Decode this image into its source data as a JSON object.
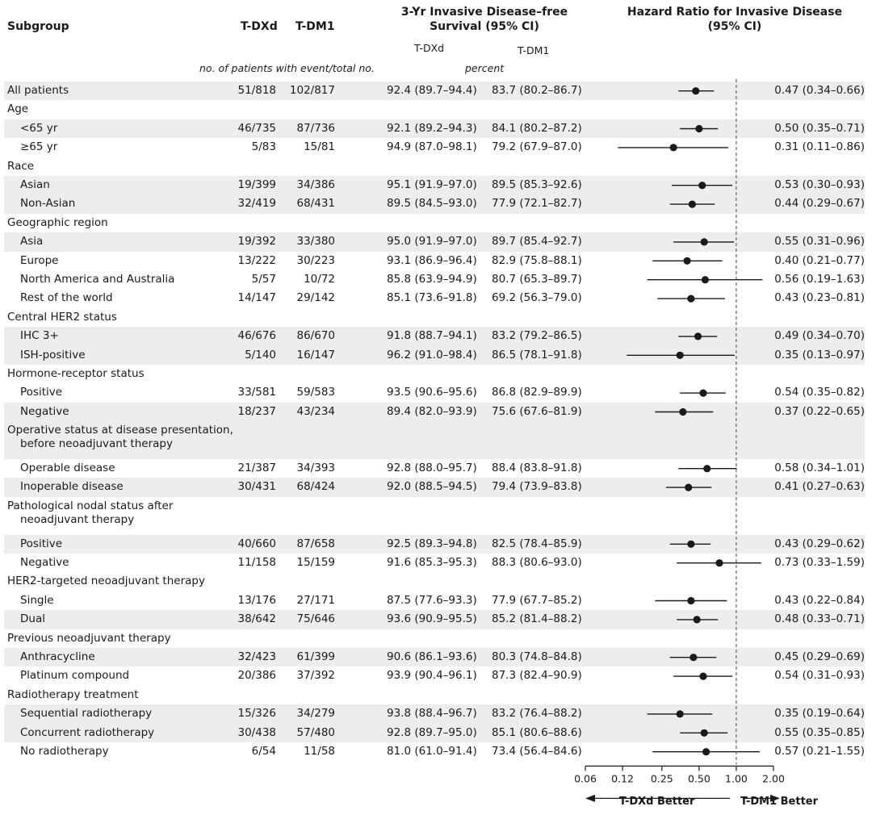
{
  "headers": {
    "subgroup": "Subgroup",
    "tdxd": "T-DXd",
    "tdm1": "T-DM1",
    "survival_line1": "3-Yr Invasive Disease–free",
    "survival_line2": "Survival (95% CI)",
    "survival_tdxd": "T-DXd",
    "survival_tdm1": "T-DM1",
    "hr_line1": "Hazard Ratio for Invasive Disease",
    "hr_line2": "(95% CI)",
    "events_unit": "no. of patients with event/total no.",
    "percent_unit": "percent"
  },
  "footer": {
    "left_better": "T-DXd Better",
    "right_better": "T-DM1 Better"
  },
  "chart_data": {
    "type": "forest",
    "title": "Hazard Ratio for Invasive Disease (95% CI)",
    "xscale": "log",
    "xlim": [
      0.06,
      2.0
    ],
    "xticks": [
      "0.06",
      "0.12",
      "0.25",
      "0.50",
      "1.00",
      "2.00"
    ],
    "reference_line": 1.0,
    "rows": [
      {
        "label": "All patients",
        "indent": false,
        "tdxd": "51/818",
        "tdm1": "102/817",
        "surv_tdxd": "92.4 (89.7–94.4)",
        "surv_tdm1": "83.7 (80.2–86.7)",
        "hr_text": "0.47 (0.34–0.66)",
        "hr": 0.47,
        "lo": 0.34,
        "hi": 0.66,
        "shade": true
      },
      {
        "label": "Age",
        "header": true
      },
      {
        "label": "<65 yr",
        "indent": true,
        "tdxd": "46/735",
        "tdm1": "87/736",
        "surv_tdxd": "92.1 (89.2–94.3)",
        "surv_tdm1": "84.1 (80.2–87.2)",
        "hr_text": "0.50 (0.35–0.71)",
        "hr": 0.5,
        "lo": 0.35,
        "hi": 0.71,
        "shade": true
      },
      {
        "label": "≥65 yr",
        "indent": true,
        "tdxd": "5/83",
        "tdm1": "15/81",
        "surv_tdxd": "94.9 (87.0–98.1)",
        "surv_tdm1": "79.2 (67.9–87.0)",
        "hr_text": "0.31 (0.11–0.86)",
        "hr": 0.31,
        "lo": 0.11,
        "hi": 0.86,
        "shade": false
      },
      {
        "label": "Race",
        "header": true
      },
      {
        "label": "Asian",
        "indent": true,
        "tdxd": "19/399",
        "tdm1": "34/386",
        "surv_tdxd": "95.1 (91.9–97.0)",
        "surv_tdm1": "89.5 (85.3–92.6)",
        "hr_text": "0.53 (0.30–0.93)",
        "hr": 0.53,
        "lo": 0.3,
        "hi": 0.93,
        "shade": true
      },
      {
        "label": "Non-Asian",
        "indent": true,
        "tdxd": "32/419",
        "tdm1": "68/431",
        "surv_tdxd": "89.5 (84.5–93.0)",
        "surv_tdm1": "77.9 (72.1–82.7)",
        "hr_text": "0.44 (0.29–0.67)",
        "hr": 0.44,
        "lo": 0.29,
        "hi": 0.67,
        "shade": true
      },
      {
        "label": "Geographic region",
        "header": true
      },
      {
        "label": "Asia",
        "indent": true,
        "tdxd": "19/392",
        "tdm1": "33/380",
        "surv_tdxd": "95.0 (91.9–97.0)",
        "surv_tdm1": "89.7 (85.4–92.7)",
        "hr_text": "0.55 (0.31–0.96)",
        "hr": 0.55,
        "lo": 0.31,
        "hi": 0.96,
        "shade": true
      },
      {
        "label": "Europe",
        "indent": true,
        "tdxd": "13/222",
        "tdm1": "30/223",
        "surv_tdxd": "93.1 (86.9–96.4)",
        "surv_tdm1": "82.9 (75.8–88.1)",
        "hr_text": "0.40 (0.21–0.77)",
        "hr": 0.4,
        "lo": 0.21,
        "hi": 0.77,
        "shade": false
      },
      {
        "label": "North America and Australia",
        "indent": true,
        "tdxd": "5/57",
        "tdm1": "10/72",
        "surv_tdxd": "85.8 (63.9–94.9)",
        "surv_tdm1": "80.7 (65.3–89.7)",
        "hr_text": "0.56 (0.19–1.63)",
        "hr": 0.56,
        "lo": 0.19,
        "hi": 1.63,
        "shade": false
      },
      {
        "label": "Rest of the world",
        "indent": true,
        "tdxd": "14/147",
        "tdm1": "29/142",
        "surv_tdxd": "85.1 (73.6–91.8)",
        "surv_tdm1": "69.2 (56.3–79.0)",
        "hr_text": "0.43 (0.23–0.81)",
        "hr": 0.43,
        "lo": 0.23,
        "hi": 0.81,
        "shade": false
      },
      {
        "label": "Central HER2 status",
        "header": true
      },
      {
        "label": "IHC 3+",
        "indent": true,
        "tdxd": "46/676",
        "tdm1": "86/670",
        "surv_tdxd": "91.8 (88.7–94.1)",
        "surv_tdm1": "83.2 (79.2–86.5)",
        "hr_text": "0.49 (0.34–0.70)",
        "hr": 0.49,
        "lo": 0.34,
        "hi": 0.7,
        "shade": true
      },
      {
        "label": "ISH-positive",
        "indent": true,
        "tdxd": "5/140",
        "tdm1": "16/147",
        "surv_tdxd": "96.2 (91.0–98.4)",
        "surv_tdm1": "86.5 (78.1–91.8)",
        "hr_text": "0.35 (0.13–0.97)",
        "hr": 0.35,
        "lo": 0.13,
        "hi": 0.97,
        "shade": true
      },
      {
        "label": "Hormone-receptor status",
        "header": true
      },
      {
        "label": "Positive",
        "indent": true,
        "tdxd": "33/581",
        "tdm1": "59/583",
        "surv_tdxd": "93.5 (90.6–95.6)",
        "surv_tdm1": "86.8 (82.9–89.9)",
        "hr_text": "0.54 (0.35–0.82)",
        "hr": 0.54,
        "lo": 0.35,
        "hi": 0.82,
        "shade": false
      },
      {
        "label": "Negative",
        "indent": true,
        "tdxd": "18/237",
        "tdm1": "43/234",
        "surv_tdxd": "89.4 (82.0–93.9)",
        "surv_tdm1": "75.6 (67.6–81.9)",
        "hr_text": "0.37 (0.22–0.65)",
        "hr": 0.37,
        "lo": 0.22,
        "hi": 0.65,
        "shade": true
      },
      {
        "label": "Operative status at disease presentation,",
        "label2": "before neoadjuvant therapy",
        "header": true,
        "double": true,
        "shade": true
      },
      {
        "label": "Operable disease",
        "indent": true,
        "tdxd": "21/387",
        "tdm1": "34/393",
        "surv_tdxd": "92.8 (88.0–95.7)",
        "surv_tdm1": "88.4 (83.8–91.8)",
        "hr_text": "0.58 (0.34–1.01)",
        "hr": 0.58,
        "lo": 0.34,
        "hi": 1.01,
        "shade": false
      },
      {
        "label": "Inoperable disease",
        "indent": true,
        "tdxd": "30/431",
        "tdm1": "68/424",
        "surv_tdxd": "92.0 (88.5–94.5)",
        "surv_tdm1": "79.4 (73.9–83.8)",
        "hr_text": "0.41 (0.27–0.63)",
        "hr": 0.41,
        "lo": 0.27,
        "hi": 0.63,
        "shade": true
      },
      {
        "label": "Pathological nodal status after",
        "label2": "neoadjuvant therapy",
        "header": true,
        "double": true,
        "shade": false
      },
      {
        "label": "Positive",
        "indent": true,
        "tdxd": "40/660",
        "tdm1": "87/658",
        "surv_tdxd": "92.5 (89.3–94.8)",
        "surv_tdm1": "82.5 (78.4–85.9)",
        "hr_text": "0.43 (0.29–0.62)",
        "hr": 0.43,
        "lo": 0.29,
        "hi": 0.62,
        "shade": true
      },
      {
        "label": "Negative",
        "indent": true,
        "tdxd": "11/158",
        "tdm1": "15/159",
        "surv_tdxd": "91.6 (85.3–95.3)",
        "surv_tdm1": "88.3 (80.6–93.0)",
        "hr_text": "0.73 (0.33–1.59)",
        "hr": 0.73,
        "lo": 0.33,
        "hi": 1.59,
        "shade": false
      },
      {
        "label": "HER2-targeted neoadjuvant therapy",
        "header": true
      },
      {
        "label": "Single",
        "indent": true,
        "tdxd": "13/176",
        "tdm1": "27/171",
        "surv_tdxd": "87.5 (77.6–93.3)",
        "surv_tdm1": "77.9 (67.7–85.2)",
        "hr_text": "0.43 (0.22–0.84)",
        "hr": 0.43,
        "lo": 0.22,
        "hi": 0.84,
        "shade": false
      },
      {
        "label": "Dual",
        "indent": true,
        "tdxd": "38/642",
        "tdm1": "75/646",
        "surv_tdxd": "93.6 (90.9–95.5)",
        "surv_tdm1": "85.2 (81.4–88.2)",
        "hr_text": "0.48 (0.33–0.71)",
        "hr": 0.48,
        "lo": 0.33,
        "hi": 0.71,
        "shade": true
      },
      {
        "label": "Previous neoadjuvant therapy",
        "header": true
      },
      {
        "label": "Anthracycline",
        "indent": true,
        "tdxd": "32/423",
        "tdm1": "61/399",
        "surv_tdxd": "90.6 (86.1–93.6)",
        "surv_tdm1": "80.3 (74.8–84.8)",
        "hr_text": "0.45 (0.29–0.69)",
        "hr": 0.45,
        "lo": 0.29,
        "hi": 0.69,
        "shade": true
      },
      {
        "label": "Platinum compound",
        "indent": true,
        "tdxd": "20/386",
        "tdm1": "37/392",
        "surv_tdxd": "93.9 (90.4–96.1)",
        "surv_tdm1": "87.3 (82.4–90.9)",
        "hr_text": "0.54 (0.31–0.93)",
        "hr": 0.54,
        "lo": 0.31,
        "hi": 0.93,
        "shade": false
      },
      {
        "label": "Radiotherapy treatment",
        "header": true
      },
      {
        "label": "Sequential radiotherapy",
        "indent": true,
        "tdxd": "15/326",
        "tdm1": "34/279",
        "surv_tdxd": "93.8 (88.4–96.7)",
        "surv_tdm1": "83.2 (76.4–88.2)",
        "hr_text": "0.35 (0.19–0.64)",
        "hr": 0.35,
        "lo": 0.19,
        "hi": 0.64,
        "shade": true
      },
      {
        "label": "Concurrent radiotherapy",
        "indent": true,
        "tdxd": "30/438",
        "tdm1": "57/480",
        "surv_tdxd": "92.8 (89.7–95.0)",
        "surv_tdm1": "85.1 (80.6–88.6)",
        "hr_text": "0.55 (0.35–0.85)",
        "hr": 0.55,
        "lo": 0.35,
        "hi": 0.85,
        "shade": true
      },
      {
        "label": "No radiotherapy",
        "indent": true,
        "tdxd": "6/54",
        "tdm1": "11/58",
        "surv_tdxd": "81.0 (61.0–91.4)",
        "surv_tdm1": "73.4 (56.4–84.6)",
        "hr_text": "0.57 (0.21–1.55)",
        "hr": 0.57,
        "lo": 0.21,
        "hi": 1.55,
        "shade": false
      }
    ]
  }
}
